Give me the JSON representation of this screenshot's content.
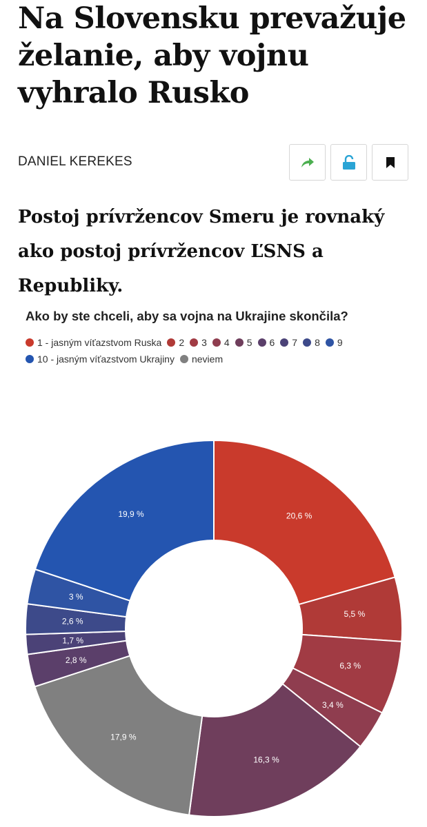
{
  "article": {
    "headline": "Na Slovensku prevažuje želanie, aby vojnu vyhralo Rusko",
    "author": "DANIEL KEREKES",
    "subheadline": "Postoj prívržencov Smeru je rovnaký ako postoj prívržencov ĽSNS a Republiky."
  },
  "actions": {
    "share_icon": "share-arrow-icon",
    "unlock_icon": "unlock-icon",
    "bookmark_icon": "bookmark-icon",
    "share_color": "#4caf50",
    "unlock_color": "#2aa4d5",
    "bookmark_color": "#111111"
  },
  "chart_data": {
    "type": "pie",
    "donut": true,
    "title": "Ako by ste chceli, aby sa vojna na Ukrajine skončila?",
    "legend_position": "top-left",
    "categories": [
      "1 - jasným víťazstvom Ruska",
      "2",
      "3",
      "4",
      "5",
      "6",
      "7",
      "8",
      "9",
      "10 - jasným víťazstvom Ukrajiny",
      "neviem"
    ],
    "values": [
      20.6,
      5.5,
      6.3,
      3.4,
      16.3,
      17.9,
      2.8,
      1.7,
      2.6,
      3,
      19.9
    ],
    "labels": [
      "20,6 %",
      "5,5 %",
      "6,3 %",
      "3,4 %",
      "16,3 %",
      "17,9 %",
      "2,8 %",
      "1,7 %",
      "2,6 %",
      "3 %",
      "19,9 %"
    ],
    "slice_names": [
      "1 - jasným víťazstvom Ruska",
      "2",
      "3",
      "4",
      "5",
      "neviem",
      "6",
      "7",
      "8",
      "9",
      "10 - jasným víťazstvom Ukrajiny"
    ],
    "legend_colors": [
      "#c93a2c",
      "#b03a37",
      "#a13b44",
      "#8f3d4f",
      "#6f3e5c",
      "#5b3f6a",
      "#4b4277",
      "#3d4a8a",
      "#2f54a4",
      "#2455b0",
      "#808080"
    ],
    "slice_colors": [
      "#c93a2c",
      "#b03a37",
      "#a13b44",
      "#8f3d4f",
      "#6f3e5c",
      "#808080",
      "#5b3f6a",
      "#4b4277",
      "#3d4a8a",
      "#2f54a4",
      "#2455b0"
    ]
  }
}
